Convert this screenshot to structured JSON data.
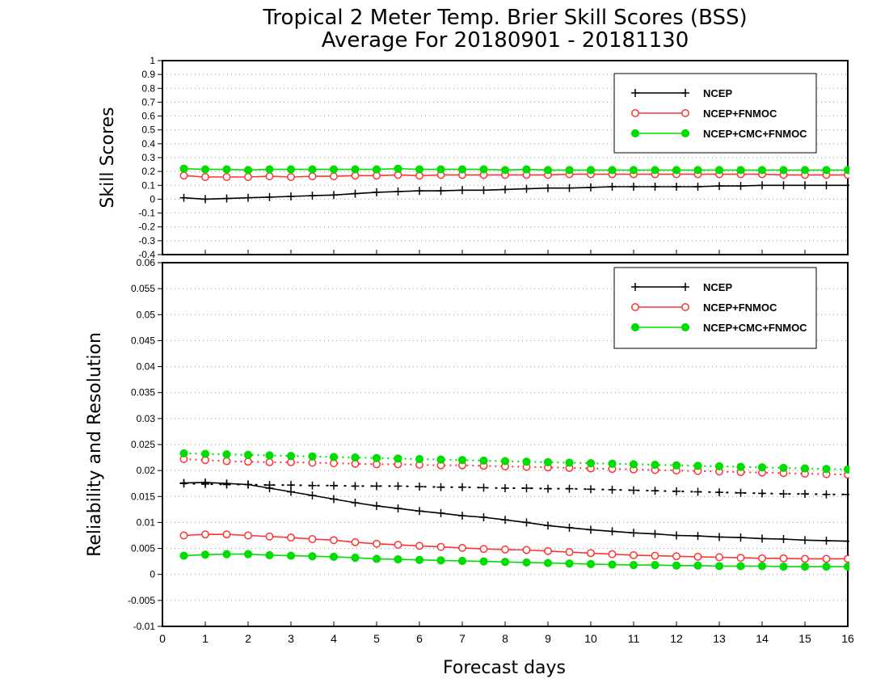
{
  "title_line1": "Tropical 2 Meter Temp. Brier Skill Scores (BSS)",
  "title_line2": "Average For 20180901 - 20181130",
  "xlabel": "Forecast days",
  "colors": {
    "ncep": "#000000",
    "fnmoc": "#ff3333",
    "cmc": "#00dd00"
  },
  "legend": [
    "NCEP",
    "NCEP+FNMOC",
    "NCEP+CMC+FNMOC"
  ],
  "chart_data": [
    {
      "type": "line",
      "ylabel": "Skill Scores",
      "xlim": [
        0,
        16
      ],
      "ylim": [
        -0.4,
        1
      ],
      "x_ticks": [
        "0",
        "1",
        "2",
        "3",
        "4",
        "5",
        "6",
        "7",
        "8",
        "9",
        "10",
        "11",
        "12",
        "13",
        "14",
        "15",
        "16"
      ],
      "y_ticks": [
        "1",
        "0.9",
        "0.8",
        "0.7",
        "0.6",
        "0.5",
        "0.4",
        "0.3",
        "0.2",
        "0.1",
        "0",
        "-0.1",
        "-0.2",
        "-0.3",
        "-0.4"
      ],
      "grid": true,
      "legend_position": "top-right",
      "x": [
        0.5,
        1,
        1.5,
        2,
        2.5,
        3,
        3.5,
        4,
        4.5,
        5,
        5.5,
        6,
        6.5,
        7,
        7.5,
        8,
        8.5,
        9,
        9.5,
        10,
        10.5,
        11,
        11.5,
        12,
        12.5,
        13,
        13.5,
        14,
        14.5,
        15,
        15.5,
        16
      ],
      "series": [
        {
          "name": "NCEP",
          "style": "solid",
          "marker": "plus",
          "color": "ncep",
          "values": [
            0.01,
            0.0,
            0.005,
            0.01,
            0.015,
            0.02,
            0.025,
            0.03,
            0.04,
            0.05,
            0.055,
            0.06,
            0.06,
            0.065,
            0.065,
            0.07,
            0.075,
            0.08,
            0.08,
            0.085,
            0.09,
            0.09,
            0.09,
            0.09,
            0.09,
            0.095,
            0.095,
            0.1,
            0.1,
            0.1,
            0.1,
            0.1
          ]
        },
        {
          "name": "NCEP+FNMOC",
          "style": "solid",
          "marker": "open-circle",
          "color": "fnmoc",
          "values": [
            0.17,
            0.16,
            0.16,
            0.16,
            0.165,
            0.16,
            0.165,
            0.165,
            0.17,
            0.17,
            0.175,
            0.17,
            0.175,
            0.175,
            0.175,
            0.175,
            0.175,
            0.175,
            0.18,
            0.18,
            0.18,
            0.18,
            0.18,
            0.18,
            0.18,
            0.18,
            0.18,
            0.18,
            0.175,
            0.175,
            0.175,
            0.175
          ]
        },
        {
          "name": "NCEP+CMC+FNMOC",
          "style": "solid",
          "marker": "filled-circle",
          "color": "cmc",
          "values": [
            0.22,
            0.215,
            0.215,
            0.21,
            0.215,
            0.215,
            0.215,
            0.215,
            0.215,
            0.215,
            0.22,
            0.215,
            0.215,
            0.215,
            0.215,
            0.21,
            0.215,
            0.21,
            0.21,
            0.21,
            0.21,
            0.21,
            0.21,
            0.21,
            0.21,
            0.21,
            0.21,
            0.21,
            0.21,
            0.21,
            0.21,
            0.21
          ]
        }
      ]
    },
    {
      "type": "line",
      "ylabel": "Reliability and Resolution",
      "xlim": [
        0,
        16
      ],
      "ylim": [
        -0.01,
        0.06
      ],
      "x_ticks": [
        "0",
        "1",
        "2",
        "3",
        "4",
        "5",
        "6",
        "7",
        "8",
        "9",
        "10",
        "11",
        "12",
        "13",
        "14",
        "15",
        "16"
      ],
      "y_ticks": [
        "0.06",
        "0.055",
        "0.05",
        "0.045",
        "0.04",
        "0.035",
        "0.03",
        "0.025",
        "0.02",
        "0.015",
        "0.01",
        "0.005",
        "0",
        "-0.005",
        "-0.01"
      ],
      "grid": true,
      "legend_position": "top-right",
      "x": [
        0.5,
        1,
        1.5,
        2,
        2.5,
        3,
        3.5,
        4,
        4.5,
        5,
        5.5,
        6,
        6.5,
        7,
        7.5,
        8,
        8.5,
        9,
        9.5,
        10,
        10.5,
        11,
        11.5,
        12,
        12.5,
        13,
        13.5,
        14,
        14.5,
        15,
        15.5,
        16
      ],
      "series": [
        {
          "name": "NCEP",
          "style": "dotted",
          "marker": "plus",
          "color": "ncep",
          "values": [
            0.0175,
            0.0174,
            0.0173,
            0.0173,
            0.0172,
            0.0172,
            0.0171,
            0.0171,
            0.017,
            0.017,
            0.017,
            0.0169,
            0.0168,
            0.0168,
            0.0167,
            0.0166,
            0.0166,
            0.0165,
            0.0165,
            0.0164,
            0.0163,
            0.0162,
            0.0161,
            0.016,
            0.0159,
            0.0158,
            0.0157,
            0.0156,
            0.0155,
            0.0155,
            0.0154,
            0.0154
          ]
        },
        {
          "name": "NCEP+FNMOC",
          "style": "dotted",
          "marker": "open-circle",
          "color": "fnmoc",
          "values": [
            0.0222,
            0.022,
            0.0218,
            0.0217,
            0.0216,
            0.0216,
            0.0215,
            0.0214,
            0.0213,
            0.0212,
            0.0212,
            0.0211,
            0.021,
            0.021,
            0.0209,
            0.0208,
            0.0207,
            0.0206,
            0.0205,
            0.0204,
            0.0203,
            0.0202,
            0.0201,
            0.02,
            0.0199,
            0.0198,
            0.0197,
            0.0196,
            0.0195,
            0.0194,
            0.0193,
            0.0192
          ]
        },
        {
          "name": "NCEP+CMC+FNMOC",
          "style": "dotted",
          "marker": "filled-circle",
          "color": "cmc",
          "values": [
            0.0233,
            0.0232,
            0.0231,
            0.023,
            0.0229,
            0.0228,
            0.0227,
            0.0226,
            0.0225,
            0.0224,
            0.0223,
            0.0222,
            0.0221,
            0.022,
            0.0219,
            0.0218,
            0.0217,
            0.0216,
            0.0215,
            0.0214,
            0.0213,
            0.0212,
            0.0211,
            0.021,
            0.0209,
            0.0208,
            0.0207,
            0.0206,
            0.0205,
            0.0204,
            0.0203,
            0.0202
          ]
        },
        {
          "name": "NCEP",
          "style": "solid",
          "marker": "plus",
          "color": "ncep",
          "values": [
            0.0176,
            0.0177,
            0.0175,
            0.0173,
            0.0166,
            0.0159,
            0.0152,
            0.0145,
            0.0138,
            0.0132,
            0.0127,
            0.0122,
            0.0118,
            0.0113,
            0.011,
            0.0105,
            0.01,
            0.0094,
            0.009,
            0.0086,
            0.0083,
            0.008,
            0.0078,
            0.0075,
            0.0074,
            0.0072,
            0.0071,
            0.0069,
            0.0068,
            0.0066,
            0.0065,
            0.0064
          ]
        },
        {
          "name": "NCEP+FNMOC",
          "style": "solid",
          "marker": "open-circle",
          "color": "fnmoc",
          "values": [
            0.0075,
            0.0077,
            0.0077,
            0.0075,
            0.0073,
            0.0071,
            0.0068,
            0.0066,
            0.0062,
            0.0059,
            0.0057,
            0.0055,
            0.0053,
            0.0051,
            0.0049,
            0.0048,
            0.0047,
            0.0045,
            0.0043,
            0.0041,
            0.0039,
            0.0037,
            0.0036,
            0.0035,
            0.0034,
            0.0033,
            0.0032,
            0.0031,
            0.0031,
            0.003,
            0.003,
            0.003
          ]
        },
        {
          "name": "NCEP+CMC+FNMOC",
          "style": "solid",
          "marker": "filled-circle",
          "color": "cmc",
          "values": [
            0.0036,
            0.0038,
            0.0039,
            0.0039,
            0.0037,
            0.0036,
            0.0035,
            0.0034,
            0.0032,
            0.003,
            0.0029,
            0.0028,
            0.0027,
            0.0026,
            0.0025,
            0.0024,
            0.0023,
            0.0022,
            0.0021,
            0.002,
            0.0019,
            0.0018,
            0.0018,
            0.0017,
            0.0017,
            0.0016,
            0.0016,
            0.0016,
            0.0015,
            0.0015,
            0.0015,
            0.0015
          ]
        }
      ]
    }
  ]
}
